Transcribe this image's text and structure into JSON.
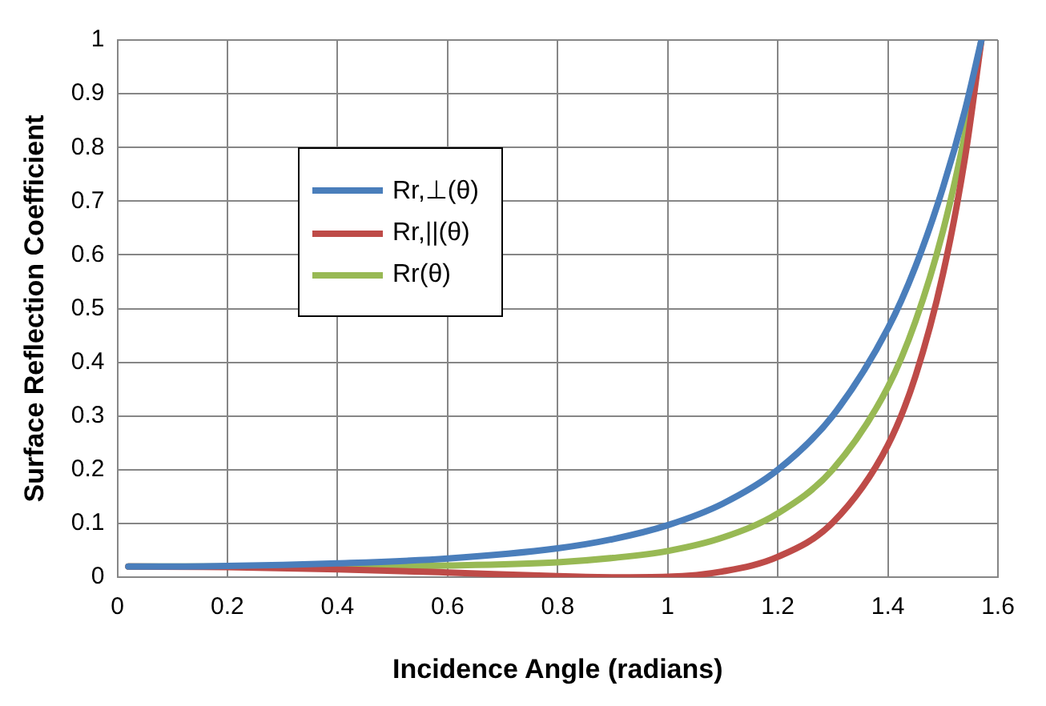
{
  "chart_data": {
    "type": "line",
    "xlabel": "Incidence Angle (radians)",
    "ylabel": "Surface Reflection Coefficient",
    "x": [
      0.02,
      0.2,
      0.4,
      0.6,
      0.8,
      0.9,
      1.0,
      1.1,
      1.2,
      1.3,
      1.4,
      1.45,
      1.5,
      1.54,
      1.57
    ],
    "series": [
      {
        "name": "Rr,⊥(θ)",
        "color": "#4a7ebb",
        "values": [
          0.02,
          0.021,
          0.026,
          0.035,
          0.054,
          0.071,
          0.097,
          0.137,
          0.2,
          0.301,
          0.463,
          0.578,
          0.725,
          0.869,
          1
        ]
      },
      {
        "name": "Rr,||(θ)",
        "color": "#be4b48",
        "values": [
          0.02,
          0.019,
          0.015,
          0.009,
          0.002,
          0,
          0.001,
          0.011,
          0.038,
          0.102,
          0.246,
          0.374,
          0.564,
          0.78,
          1
        ]
      },
      {
        "name": "Rr(θ)",
        "color": "#98b954",
        "values": [
          0.02,
          0.02,
          0.02,
          0.022,
          0.028,
          0.036,
          0.049,
          0.074,
          0.119,
          0.201,
          0.354,
          0.476,
          0.644,
          0.825,
          1
        ]
      }
    ],
    "xlim": [
      0,
      1.6
    ],
    "xticks": [
      0,
      0.2,
      0.4,
      0.6,
      0.8,
      1,
      1.2,
      1.4,
      1.6
    ],
    "ylim": [
      0,
      1
    ],
    "yticks": [
      0,
      0.1,
      0.2,
      0.3,
      0.4,
      0.5,
      0.6,
      0.7,
      0.8,
      0.9,
      1
    ],
    "grid": true,
    "legend": "top left",
    "marker": "none",
    "line_style": "solid"
  }
}
